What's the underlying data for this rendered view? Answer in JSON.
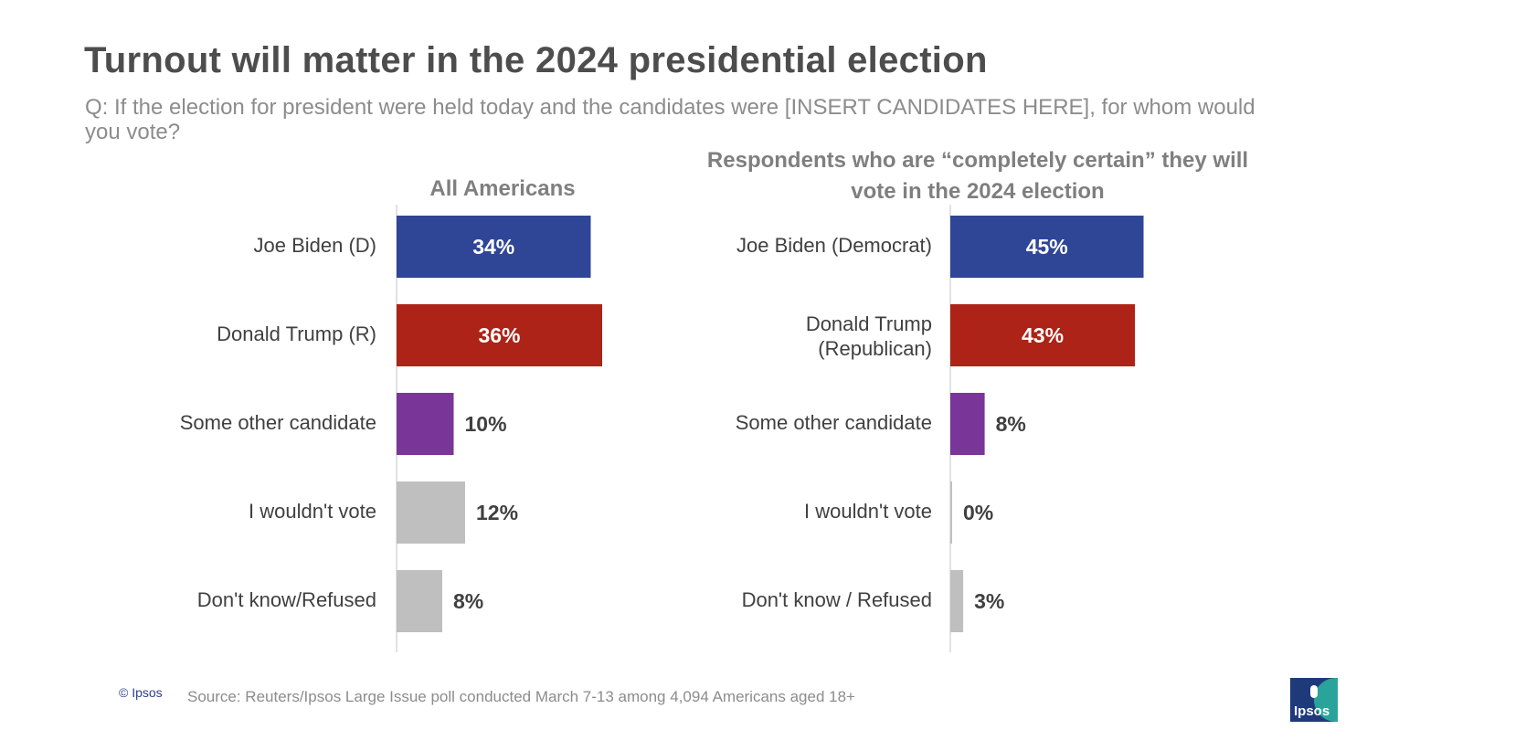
{
  "title": "Turnout will matter in the 2024 presidential election",
  "question": "Q: If the election for president were held today and the candidates were [INSERT CANDIDATES HERE], for whom would you vote?",
  "footer": {
    "copyright": "© Ipsos",
    "source": "Source: Reuters/Ipsos Large Issue poll conducted March 7-13 among 4,094 Americans aged 18+",
    "logo_text": "Ipsos"
  },
  "colors": {
    "biden": "#2f4596",
    "trump": "#ad2317",
    "other": "#7a3599",
    "neutral": "#bfbfbf",
    "axis": "#d9d9d9"
  },
  "chart_data": [
    {
      "type": "bar",
      "orientation": "horizontal",
      "title": "All Americans",
      "categories": [
        "Joe Biden (D)",
        "Donald Trump (R)",
        "Some other candidate",
        "I wouldn't vote",
        "Don't know/Refused"
      ],
      "values": [
        34,
        36,
        10,
        12,
        8
      ],
      "value_labels": [
        "34%",
        "36%",
        "10%",
        "12%",
        "8%"
      ],
      "unit": "%"
    },
    {
      "type": "bar",
      "orientation": "horizontal",
      "title": "Respondents who are “completely certain” they will vote in the 2024 election",
      "categories": [
        "Joe Biden (Democrat)",
        "Donald Trump (Republican)",
        "Some other candidate",
        "I wouldn't vote",
        "Don't know / Refused"
      ],
      "values": [
        45,
        43,
        8,
        0,
        3
      ],
      "value_labels": [
        "45%",
        "43%",
        "8%",
        "0%",
        "3%"
      ],
      "unit": "%"
    }
  ]
}
